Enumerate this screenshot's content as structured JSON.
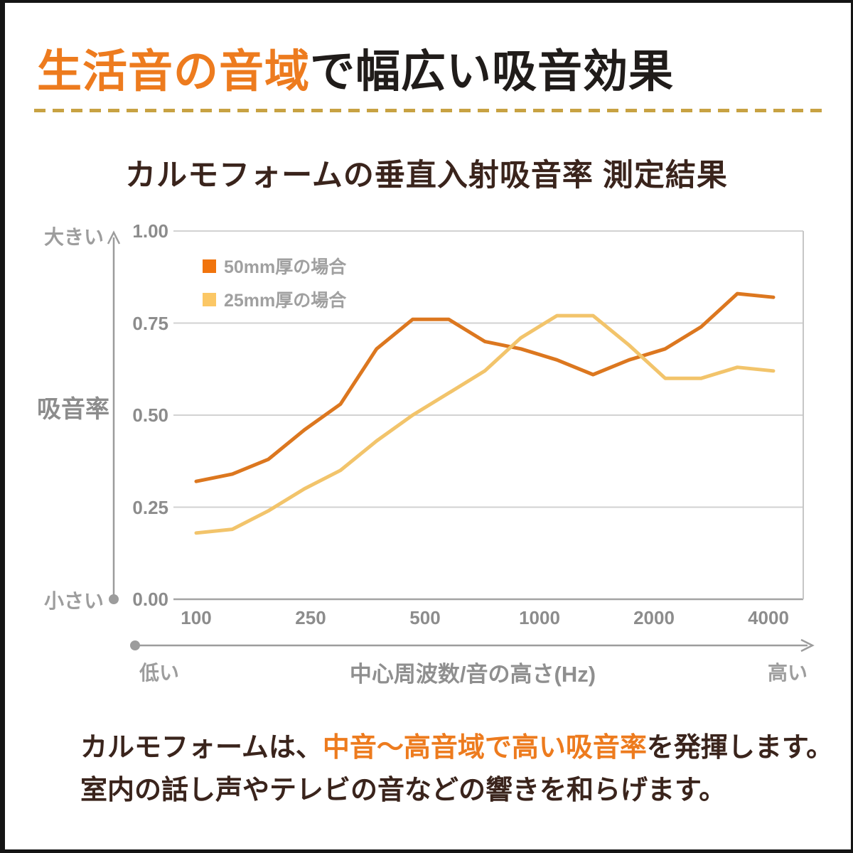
{
  "page": {
    "header": {
      "highlight": "生活音の音域",
      "rest": "で幅広い吸音効果"
    },
    "footer": {
      "line1_pre": "カルモフォームは、",
      "line1_highlight": "中音〜高音域で高い吸音率",
      "line1_post": "を発揮します。",
      "line2": "室内の話し声やテレビの音などの響きを和らげます。"
    },
    "colors": {
      "accent_orange": "#ed7b1e",
      "dark_text": "#201c1a",
      "brown_text": "#3a241c",
      "divider_mustard": "#c8a243",
      "grid_gray": "#d2d2d2",
      "axis_gray": "#9c9c9c"
    }
  },
  "chart_data": {
    "type": "line",
    "title": "カルモフォームの垂直入射吸音率 測定結果",
    "xlabel": "中心周波数/音の高さ(Hz)",
    "ylabel": "吸音率",
    "y_axis_top_note": "大きい",
    "y_axis_bottom_note": "小さい",
    "x_axis_left_note": "低い",
    "x_axis_right_note": "高い",
    "ylim": [
      0.0,
      1.0
    ],
    "grid": "horizontal",
    "legend_position": "top-left-inside",
    "y_tick_labels": [
      "1.00",
      "0.75",
      "0.50",
      "0.25",
      "0.00"
    ],
    "x_tick_labels": [
      "100",
      "250",
      "500",
      "1000",
      "2000",
      "4000"
    ],
    "x_bands_hz": [
      100,
      125,
      160,
      200,
      250,
      315,
      400,
      500,
      630,
      800,
      1000,
      1250,
      1600,
      2000,
      2500,
      3150,
      4000
    ],
    "series": [
      {
        "id": "50mm",
        "name": "50mm厚の場合",
        "line_color": "#dc771f",
        "legend_color": "#f1740d",
        "values": [
          0.32,
          0.34,
          0.38,
          0.46,
          0.53,
          0.68,
          0.76,
          0.76,
          0.7,
          0.68,
          0.65,
          0.61,
          0.65,
          0.68,
          0.74,
          0.83,
          0.82
        ]
      },
      {
        "id": "25mm",
        "name": "25mm厚の場合",
        "line_color": "#f2c46b",
        "legend_color": "#fbc765",
        "values": [
          0.18,
          0.19,
          0.24,
          0.3,
          0.35,
          0.43,
          0.5,
          0.56,
          0.62,
          0.71,
          0.77,
          0.77,
          0.69,
          0.6,
          0.6,
          0.63,
          0.62
        ]
      }
    ]
  }
}
